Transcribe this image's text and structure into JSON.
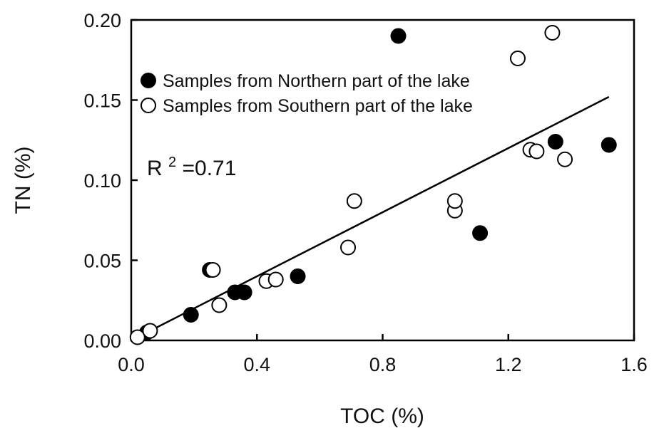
{
  "chart_data": {
    "type": "scatter",
    "title": "",
    "xlabel": "TOC (%)",
    "ylabel": "TN (%)",
    "xlim": [
      0.0,
      1.6
    ],
    "ylim": [
      0.0,
      0.2
    ],
    "xticks": [
      "0.0",
      "0.4",
      "0.8",
      "1.2",
      "1.6"
    ],
    "yticks": [
      "0.00",
      "0.05",
      "0.10",
      "0.15",
      "0.20"
    ],
    "xtick_values": [
      0.0,
      0.4,
      0.8,
      1.2,
      1.6
    ],
    "ytick_values": [
      0.0,
      0.05,
      0.1,
      0.15,
      0.2
    ],
    "grid": false,
    "legend_position": "top-left",
    "series": [
      {
        "name": "Samples from Northern part of the lake",
        "marker": "filled-circle",
        "color": "#000000",
        "points": [
          [
            0.05,
            0.005
          ],
          [
            0.19,
            0.016
          ],
          [
            0.25,
            0.044
          ],
          [
            0.33,
            0.03
          ],
          [
            0.36,
            0.03
          ],
          [
            0.53,
            0.04
          ],
          [
            0.85,
            0.19
          ],
          [
            1.11,
            0.067
          ],
          [
            1.35,
            0.124
          ],
          [
            1.52,
            0.122
          ]
        ]
      },
      {
        "name": "Samples from Southern part of the lake",
        "marker": "open-circle",
        "color": "#000000",
        "points": [
          [
            0.02,
            0.002
          ],
          [
            0.06,
            0.006
          ],
          [
            0.26,
            0.044
          ],
          [
            0.28,
            0.022
          ],
          [
            0.43,
            0.037
          ],
          [
            0.46,
            0.038
          ],
          [
            0.69,
            0.058
          ],
          [
            0.71,
            0.087
          ],
          [
            1.03,
            0.081
          ],
          [
            1.03,
            0.087
          ],
          [
            1.23,
            0.176
          ],
          [
            1.27,
            0.119
          ],
          [
            1.29,
            0.118
          ],
          [
            1.34,
            0.192
          ],
          [
            1.38,
            0.113
          ]
        ]
      }
    ],
    "regression_line": {
      "x": [
        0.0,
        1.52
      ],
      "y": [
        0.0,
        0.152
      ]
    },
    "annotation": {
      "base": "R",
      "sup": "2",
      "rest": "=0.71"
    }
  }
}
